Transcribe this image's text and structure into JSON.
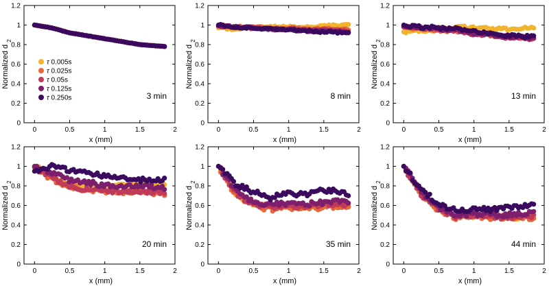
{
  "chart_data": {
    "type": "scatter",
    "xlabel": "x (mm)",
    "ylabel": "Normalized d",
    "ylabel_sub": "2",
    "xlim": [
      -0.15,
      2
    ],
    "ylim": [
      0,
      1.2
    ],
    "xticks": [
      "0",
      "0.5",
      "1",
      "1.5",
      "2"
    ],
    "yticks": [
      "0",
      "0.2",
      "0.4",
      "0.6",
      "0.8",
      "1",
      "1.2"
    ],
    "legend": [
      {
        "symbol": "τ",
        "label": "0.005s",
        "color": "#F2B32E"
      },
      {
        "symbol": "τ",
        "label": "0.025s",
        "color": "#E8663A"
      },
      {
        "symbol": "τ",
        "label": "0.05s",
        "color": "#C03A5A"
      },
      {
        "symbol": "τ",
        "label": "0.125s",
        "color": "#7E1F6E"
      },
      {
        "symbol": "τ",
        "label": "0.250s",
        "color": "#3A0A5E"
      }
    ],
    "panels": [
      {
        "label": "3 min",
        "x": [
          0,
          0.25,
          0.5,
          0.75,
          1.0,
          1.25,
          1.5,
          1.85
        ],
        "series": [
          {
            "name": "0.005s",
            "values": [
              1.0,
              0.97,
              0.92,
              0.89,
              0.86,
              0.83,
              0.8,
              0.78
            ]
          },
          {
            "name": "0.025s",
            "values": [
              1.0,
              0.97,
              0.92,
              0.89,
              0.86,
              0.83,
              0.8,
              0.78
            ]
          },
          {
            "name": "0.05s",
            "values": [
              1.0,
              0.97,
              0.92,
              0.89,
              0.86,
              0.83,
              0.8,
              0.78
            ]
          },
          {
            "name": "0.125s",
            "values": [
              1.0,
              0.97,
              0.92,
              0.89,
              0.86,
              0.83,
              0.8,
              0.78
            ]
          },
          {
            "name": "0.250s",
            "values": [
              1.0,
              0.97,
              0.92,
              0.89,
              0.86,
              0.83,
              0.8,
              0.78
            ]
          }
        ]
      },
      {
        "label": "8 min",
        "x": [
          0,
          0.25,
          0.5,
          0.75,
          1.0,
          1.25,
          1.5,
          1.85
        ],
        "series": [
          {
            "name": "0.005s",
            "values": [
              0.97,
              0.96,
              0.97,
              0.98,
              0.98,
              0.98,
              0.99,
              1.0
            ]
          },
          {
            "name": "0.025s",
            "values": [
              0.99,
              0.98,
              0.98,
              0.97,
              0.97,
              0.96,
              0.96,
              0.95
            ]
          },
          {
            "name": "0.05s",
            "values": [
              0.99,
              0.98,
              0.97,
              0.96,
              0.96,
              0.95,
              0.95,
              0.94
            ]
          },
          {
            "name": "0.125s",
            "values": [
              0.99,
              0.98,
              0.97,
              0.96,
              0.95,
              0.94,
              0.94,
              0.93
            ]
          },
          {
            "name": "0.250s",
            "values": [
              1.0,
              0.98,
              0.97,
              0.96,
              0.95,
              0.94,
              0.93,
              0.92
            ]
          }
        ]
      },
      {
        "label": "13 min",
        "x": [
          0,
          0.25,
          0.5,
          0.75,
          1.0,
          1.25,
          1.5,
          1.85
        ],
        "series": [
          {
            "name": "0.005s",
            "values": [
              0.93,
              0.94,
              0.96,
              0.98,
              0.97,
              0.96,
              0.96,
              0.97
            ]
          },
          {
            "name": "0.025s",
            "values": [
              0.98,
              0.96,
              0.95,
              0.94,
              0.91,
              0.9,
              0.88,
              0.87
            ]
          },
          {
            "name": "0.05s",
            "values": [
              0.98,
              0.97,
              0.96,
              0.94,
              0.91,
              0.89,
              0.87,
              0.86
            ]
          },
          {
            "name": "0.125s",
            "values": [
              0.99,
              0.98,
              0.96,
              0.95,
              0.92,
              0.9,
              0.88,
              0.87
            ]
          },
          {
            "name": "0.250s",
            "values": [
              1.0,
              0.98,
              0.97,
              0.96,
              0.93,
              0.91,
              0.89,
              0.88
            ]
          }
        ]
      },
      {
        "label": "20 min",
        "x": [
          0,
          0.25,
          0.5,
          0.75,
          1.0,
          1.25,
          1.5,
          1.85
        ],
        "series": [
          {
            "name": "0.005s",
            "values": [
              1.0,
              0.9,
              0.82,
              0.8,
              0.8,
              0.8,
              0.82,
              0.8
            ]
          },
          {
            "name": "0.025s",
            "values": [
              0.99,
              0.87,
              0.78,
              0.76,
              0.74,
              0.74,
              0.74,
              0.72
            ]
          },
          {
            "name": "0.05s",
            "values": [
              0.99,
              0.88,
              0.79,
              0.77,
              0.75,
              0.75,
              0.75,
              0.73
            ]
          },
          {
            "name": "0.125s",
            "values": [
              1.0,
              0.93,
              0.86,
              0.84,
              0.8,
              0.8,
              0.8,
              0.78
            ]
          },
          {
            "name": "0.250s",
            "values": [
              0.95,
              1.0,
              0.96,
              0.93,
              0.9,
              0.88,
              0.86,
              0.87
            ]
          }
        ]
      },
      {
        "label": "35 min",
        "x": [
          0,
          0.25,
          0.5,
          0.75,
          1.0,
          1.25,
          1.5,
          1.85
        ],
        "series": [
          {
            "name": "0.005s",
            "values": [
              1.0,
              0.72,
              0.62,
              0.58,
              0.6,
              0.59,
              0.6,
              0.6
            ]
          },
          {
            "name": "0.025s",
            "values": [
              1.0,
              0.7,
              0.6,
              0.56,
              0.58,
              0.57,
              0.58,
              0.59
            ]
          },
          {
            "name": "0.05s",
            "values": [
              1.0,
              0.72,
              0.62,
              0.58,
              0.6,
              0.59,
              0.6,
              0.61
            ]
          },
          {
            "name": "0.125s",
            "values": [
              1.0,
              0.74,
              0.64,
              0.61,
              0.62,
              0.61,
              0.63,
              0.64
            ]
          },
          {
            "name": "0.250s",
            "values": [
              1.0,
              0.82,
              0.74,
              0.68,
              0.72,
              0.72,
              0.76,
              0.72
            ]
          }
        ]
      },
      {
        "label": "44 min",
        "x": [
          0,
          0.25,
          0.5,
          0.75,
          1.0,
          1.25,
          1.5,
          1.85
        ],
        "series": [
          {
            "name": "0.005s",
            "values": [
              1.0,
              0.72,
              0.56,
              0.48,
              0.5,
              0.49,
              0.48,
              0.48
            ]
          },
          {
            "name": "0.025s",
            "values": [
              1.0,
              0.7,
              0.55,
              0.47,
              0.49,
              0.48,
              0.47,
              0.47
            ]
          },
          {
            "name": "0.05s",
            "values": [
              1.0,
              0.71,
              0.56,
              0.48,
              0.5,
              0.49,
              0.48,
              0.49
            ]
          },
          {
            "name": "0.125s",
            "values": [
              1.0,
              0.73,
              0.58,
              0.5,
              0.52,
              0.51,
              0.5,
              0.52
            ]
          },
          {
            "name": "0.250s",
            "values": [
              1.0,
              0.76,
              0.62,
              0.54,
              0.56,
              0.56,
              0.58,
              0.6
            ]
          }
        ]
      }
    ]
  }
}
